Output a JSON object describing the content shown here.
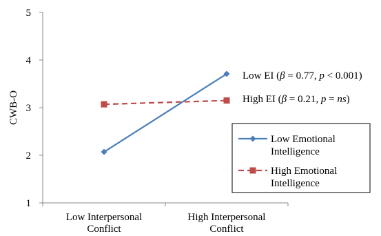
{
  "chart_data": {
    "type": "line",
    "title": "",
    "xlabel": "",
    "ylabel": "CWB-O",
    "ylim": [
      1,
      5
    ],
    "yticks": [
      "1",
      "2",
      "3",
      "4",
      "5"
    ],
    "grid": false,
    "categories": [
      [
        "Low Interpersonal",
        "Conflict"
      ],
      [
        "High Interpersonal",
        "Conflict"
      ]
    ],
    "series": [
      {
        "name": [
          "Low Emotional",
          "Intelligence"
        ],
        "values": [
          2.07,
          3.71
        ],
        "color": "#4a7ebb",
        "style": "solid",
        "marker": "diamond"
      },
      {
        "name": [
          "High Emotional",
          "Intelligence"
        ],
        "values": [
          3.07,
          3.15
        ],
        "color": "#be4b48",
        "style": "dashed",
        "marker": "square"
      }
    ],
    "annotations": [
      {
        "group": "Low EI",
        "beta": "0.77",
        "pName": "p",
        "pRel": " < ",
        "pVal": "0.001"
      },
      {
        "group": "High EI",
        "beta": "0.21",
        "pName": "p",
        "pRel": " = ",
        "pVal": "ns"
      }
    ],
    "legend_position": "right"
  }
}
